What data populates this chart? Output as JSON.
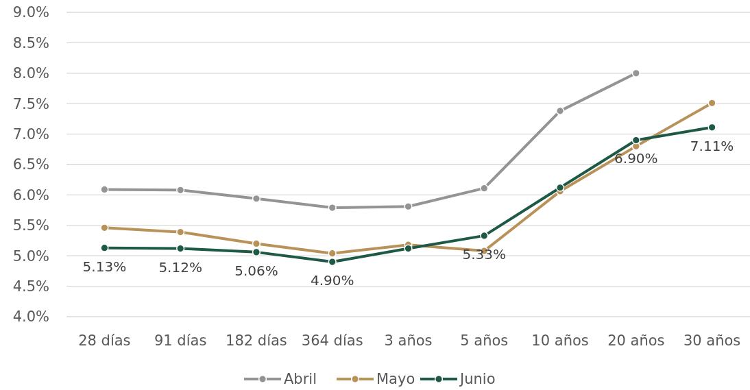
{
  "chart_data": {
    "type": "line",
    "categories": [
      "28 días",
      "91 días",
      "182 días",
      "364 días",
      "3 años",
      "5 años",
      "10 años",
      "20 años",
      "30 años"
    ],
    "series": [
      {
        "name": "Abril",
        "color": "#949494",
        "values": [
          6.09,
          6.08,
          5.94,
          5.79,
          5.81,
          6.11,
          7.38,
          8.0,
          null
        ]
      },
      {
        "name": "Mayo",
        "color": "#b9925a",
        "values": [
          5.46,
          5.39,
          5.2,
          5.04,
          5.18,
          5.08,
          6.06,
          6.8,
          7.51
        ]
      },
      {
        "name": "Junio",
        "color": "#1e5945",
        "values": [
          5.13,
          5.12,
          5.06,
          4.9,
          5.12,
          5.33,
          6.12,
          6.9,
          7.11
        ],
        "value_labels": [
          "5.13%",
          "5.12%",
          "5.06%",
          "4.90%",
          null,
          "5.33%",
          null,
          "6.90%",
          "7.11%"
        ]
      }
    ],
    "ylim": [
      4,
      9
    ],
    "yticks": [
      {
        "value": 4,
        "label": "4.0%"
      },
      {
        "value": 4.5,
        "label": "4.5%"
      },
      {
        "value": 5,
        "label": "5.0%"
      },
      {
        "value": 5.5,
        "label": "5.5%"
      },
      {
        "value": 6,
        "label": "6.0%"
      },
      {
        "value": 6.5,
        "label": "6.5%"
      },
      {
        "value": 7,
        "label": "7.0%"
      },
      {
        "value": 7.5,
        "label": "7.5%"
      },
      {
        "value": 8,
        "label": "8.0%"
      },
      {
        "value": 8.5,
        "label": "8.5%"
      },
      {
        "value": 9,
        "label": "9.0%"
      }
    ],
    "grid": "y",
    "legend": "bottom",
    "marker": "circle",
    "line_style": "solid"
  }
}
